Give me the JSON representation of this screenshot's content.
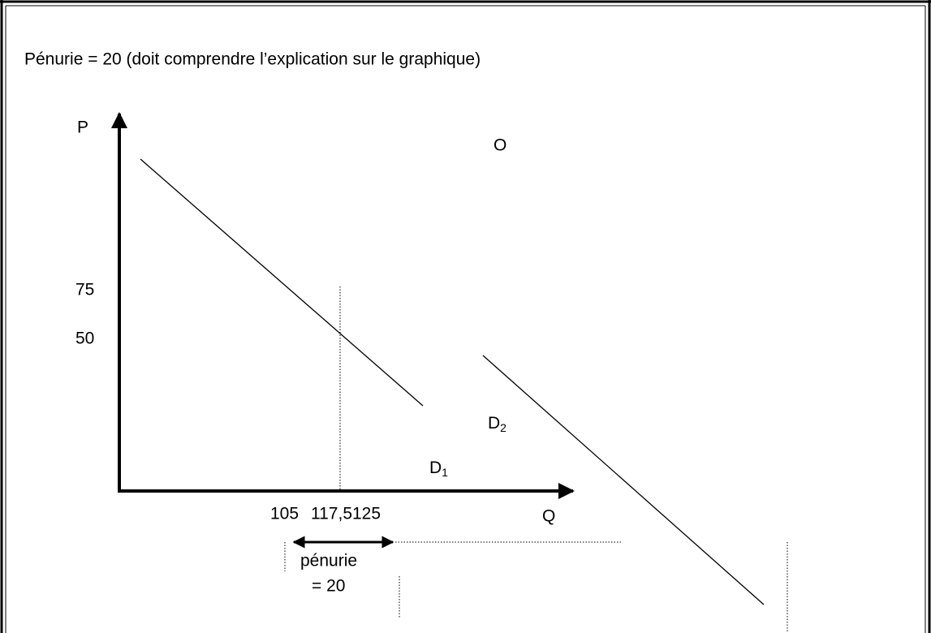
{
  "header": {
    "title": "Pénurie = 20 (doit comprendre l’explication sur le graphique)"
  },
  "axes": {
    "y_label": "P",
    "x_label": "Q"
  },
  "labels": {
    "supply": "O",
    "p_ticks": [
      "75",
      "50"
    ],
    "q_ticks": [
      "105",
      "117,5125"
    ],
    "d1": {
      "letter": "D",
      "sub": "1"
    },
    "d2": {
      "letter": "D",
      "sub": "2"
    }
  },
  "annotation": {
    "line1": "pénurie",
    "line2": "= 20"
  }
}
